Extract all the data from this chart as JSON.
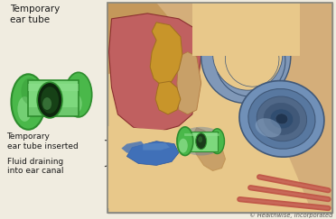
{
  "background_color": "#f0ece0",
  "label_temp_tube": "Temporary\near tube",
  "label_inserted": "Temporary\near tube inserted",
  "label_fluid": "Fluid draining\ninto ear canal",
  "copyright": "© Healthwise, Incorporated",
  "tube_green_dark": "#2d8c2d",
  "tube_green_light": "#7dd87d",
  "tube_green_mid": "#4ab84a",
  "tube_green_bright": "#90e090",
  "skin_tan": "#d4ae7a",
  "skin_light": "#e8c88a",
  "skin_medium": "#c4985a",
  "skin_dark": "#b07840",
  "middle_ear_pink": "#c06060",
  "middle_ear_dark": "#8b3030",
  "ossicle_gold": "#c8952a",
  "ossicle_dark": "#a07020",
  "cochlea_blue": "#7090b8",
  "cochlea_mid": "#5878a0",
  "cochlea_dark": "#405878",
  "cochlea_light": "#90aac8",
  "semi_canal_blue": "#8098b8",
  "fluid_blue_dark": "#2855a0",
  "fluid_blue_mid": "#4070b8",
  "fluid_blue_light": "#6090c8",
  "ear_lining_red": "#c05848",
  "ear_lining_pink": "#d07868",
  "tympanic_tan": "#c8a068",
  "text_color": "#1a1a1a",
  "border_color": "#888880"
}
